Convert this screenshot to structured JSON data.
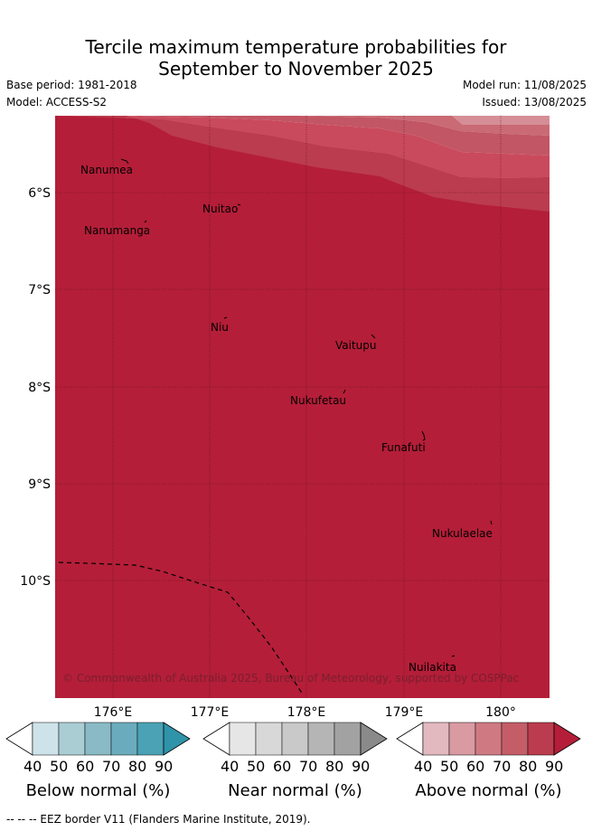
{
  "title": {
    "line1": "Tercile maximum temperature probabilities for",
    "line2": "September to November 2025"
  },
  "meta": {
    "base_period": "Base period: 1981-2018",
    "model": "Model: ACCESS-S2",
    "model_run": "Model run: 11/08/2025",
    "issued": "Issued: 13/08/2025"
  },
  "map": {
    "lon_ticks": [
      "176°E",
      "177°E",
      "178°E",
      "179°E",
      "180°"
    ],
    "lat_ticks": [
      "6°S",
      "7°S",
      "8°S",
      "9°S",
      "10°S"
    ],
    "places": [
      "Nanumea",
      "Nuitao",
      "Nanumanga",
      "Niu",
      "Vaitupu",
      "Nukufetau",
      "Funafuti",
      "Nukulaelae",
      "Nuilakita"
    ],
    "copyright": "© Commonwealth of Australia 2025, Bureau of Meteorology, supported by COSPPac",
    "fill_color": "#b41e38",
    "band_colors": [
      "#c94a5c",
      "#c25664",
      "#c96a74",
      "#d58e95"
    ]
  },
  "colorbars": [
    {
      "title": "Below normal (%)",
      "labels": [
        "40",
        "50",
        "60",
        "70",
        "80",
        "90"
      ],
      "colors": [
        "#ffffff",
        "#cde3e9",
        "#aacdd4",
        "#89bac6",
        "#6aacbd",
        "#4aa2b4",
        "#2f93a9"
      ]
    },
    {
      "title": "Near normal (%)",
      "labels": [
        "40",
        "50",
        "60",
        "70",
        "80",
        "90"
      ],
      "colors": [
        "#ffffff",
        "#e6e6e6",
        "#d8d8d8",
        "#c9c9c9",
        "#b5b5b5",
        "#a2a2a2",
        "#8a8a8a"
      ]
    },
    {
      "title": "Above normal (%)",
      "labels": [
        "40",
        "50",
        "60",
        "70",
        "80",
        "90"
      ],
      "colors": [
        "#ffffff",
        "#e3b9c0",
        "#d99aa2",
        "#cf7a83",
        "#c45d68",
        "#bb3c4e",
        "#b41e38"
      ]
    }
  ],
  "footer": "--  --  -- EEZ border V11 (Flanders Marine Institute, 2019)."
}
